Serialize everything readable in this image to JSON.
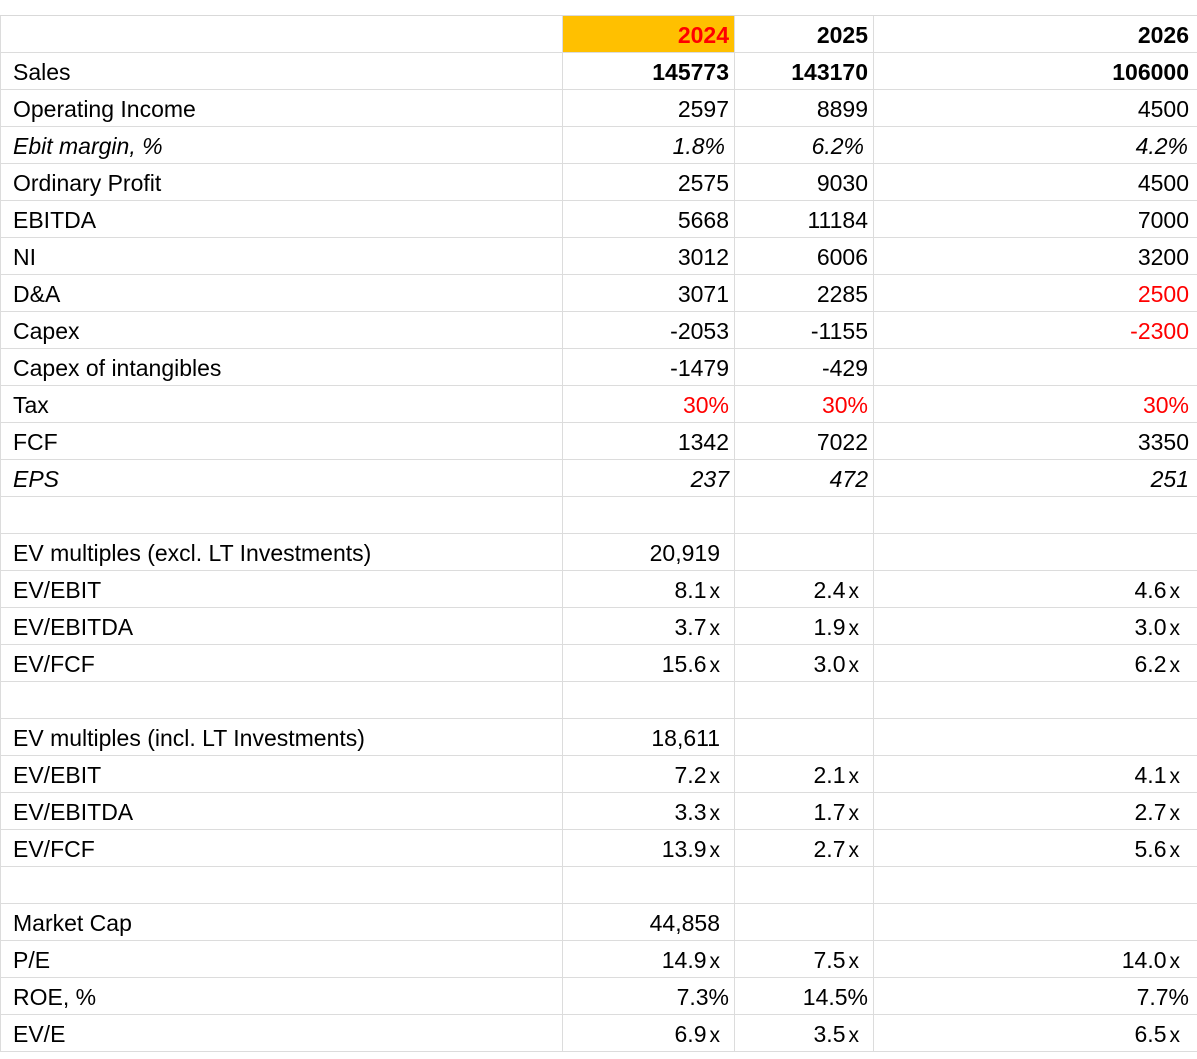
{
  "header": {
    "col1": "2024",
    "col2": "2025",
    "col3": "2026"
  },
  "colors": {
    "highlight_bg": "#ffc000",
    "highlight_text": "#ff0000",
    "input_red": "#ff0000",
    "grid": "#dcdcdc"
  },
  "rows": [
    {
      "label": "Sales",
      "v1": "145773",
      "v2": "143170",
      "v3": "106000"
    },
    {
      "label": "Operating Income",
      "v1": "2597",
      "v2": "8899",
      "v3": "4500"
    },
    {
      "label": "Ebit margin, %",
      "v1": "1.8%",
      "v2": "6.2%",
      "v3": "4.2%"
    },
    {
      "label": "Ordinary Profit",
      "v1": "2575",
      "v2": "9030",
      "v3": "4500"
    },
    {
      "label": "EBITDA",
      "v1": "5668",
      "v2": "11184",
      "v3": "7000"
    },
    {
      "label": "NI",
      "v1": "3012",
      "v2": "6006",
      "v3": "3200"
    },
    {
      "label": "D&A",
      "v1": "3071",
      "v2": "2285",
      "v3": "2500"
    },
    {
      "label": "Capex",
      "v1": "-2053",
      "v2": "-1155",
      "v3": "-2300"
    },
    {
      "label": "Capex of intangibles",
      "v1": "-1479",
      "v2": "-429",
      "v3": ""
    },
    {
      "label": "Tax",
      "v1": "30%",
      "v2": "30%",
      "v3": "30%"
    },
    {
      "label": "FCF",
      "v1": "1342",
      "v2": "7022",
      "v3": "3350"
    },
    {
      "label": "EPS",
      "v1": "237",
      "v2": "472",
      "v3": "251"
    }
  ],
  "ev_excl": {
    "title": "EV multiples (excl. LT Investments)",
    "value": "20,919",
    "rows": [
      {
        "label": "EV/EBIT",
        "v1": "8.1",
        "v2": "2.4",
        "v3": "4.6"
      },
      {
        "label": "EV/EBITDA",
        "v1": "3.7",
        "v2": "1.9",
        "v3": "3.0"
      },
      {
        "label": "EV/FCF",
        "v1": "15.6",
        "v2": "3.0",
        "v3": "6.2"
      }
    ]
  },
  "ev_incl": {
    "title": "EV multiples (incl. LT Investments)",
    "value": "18,611",
    "rows": [
      {
        "label": "EV/EBIT",
        "v1": "7.2",
        "v2": "2.1",
        "v3": "4.1"
      },
      {
        "label": "EV/EBITDA",
        "v1": "3.3",
        "v2": "1.7",
        "v3": "2.7"
      },
      {
        "label": "EV/FCF",
        "v1": "13.9",
        "v2": "2.7",
        "v3": "5.6"
      }
    ]
  },
  "market": {
    "title": "Market Cap",
    "value": "44,858",
    "pe": {
      "label": "P/E",
      "v1": "14.9",
      "v2": "7.5",
      "v3": "14.0"
    },
    "roe": {
      "label": "ROE, %",
      "v1": "7.3%",
      "v2": "14.5%",
      "v3": "7.7%"
    },
    "eve": {
      "label": "EV/E",
      "v1": "6.9",
      "v2": "3.5",
      "v3": "6.5"
    }
  },
  "multiple_suffix": "x"
}
